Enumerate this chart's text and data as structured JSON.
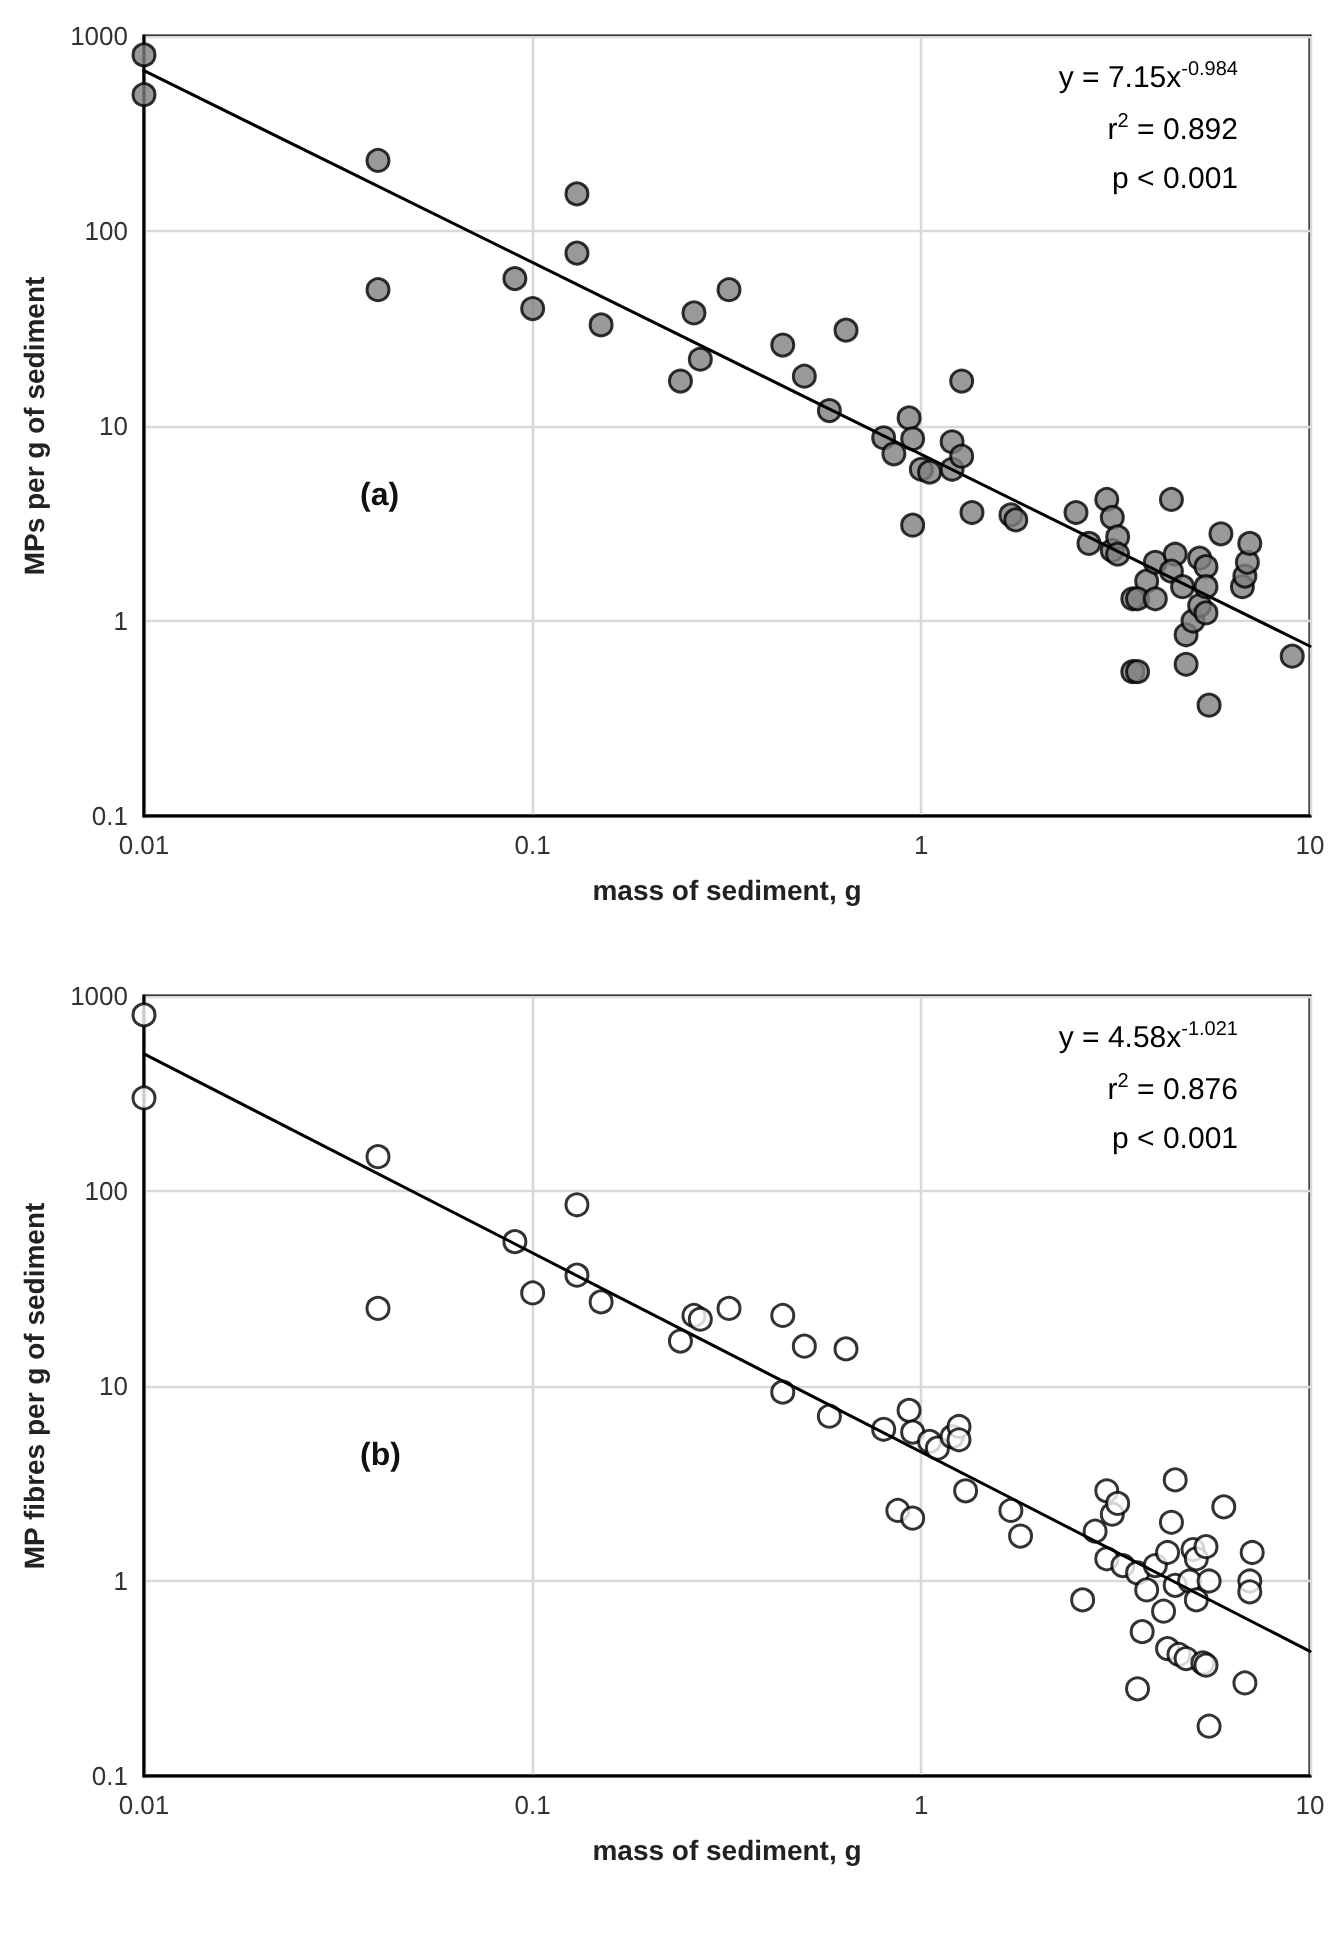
{
  "chart_data": [
    {
      "type": "scatter",
      "xlabel": "mass of sediment, g",
      "ylabel": "MPs per g of sediment",
      "log": "xy",
      "grid": true,
      "marker": "circle",
      "xlim": [
        0.01,
        10
      ],
      "ylim": [
        0.1,
        1000
      ],
      "xticks": [
        0.01,
        0.1,
        1,
        10
      ],
      "yticks": [
        0.1,
        1,
        10,
        100,
        1000
      ],
      "annotations": [
        "(a)",
        "y = 7.15x$^{-0.984}$",
        "r$^{2}$ = 0.892",
        "p < 0.001"
      ],
      "series": [
        {
          "color": "#808080",
          "x": [
            0.01,
            0.01,
            0.04,
            0.04,
            0.09,
            0.1,
            0.13,
            0.13,
            0.15,
            0.24,
            0.26,
            0.27,
            0.32,
            0.44,
            0.5,
            0.58,
            0.64,
            0.8,
            0.85,
            0.93,
            0.95,
            0.95,
            1.0,
            1.05,
            1.2,
            1.2,
            1.27,
            1.27,
            1.35,
            1.7,
            1.75,
            2.5,
            2.7,
            3.0,
            3.1,
            3.1,
            3.2,
            3.2,
            3.5,
            3.8,
            3.6,
            3.5,
            3.6,
            4.0,
            4.0,
            4.4,
            4.5,
            4.4,
            4.7,
            4.8,
            4.8,
            5.0,
            5.2,
            5.2,
            5.4,
            5.4,
            5.4,
            5.5,
            5.9,
            6.7,
            6.8,
            6.9,
            7.0,
            9.0
          ],
          "values": [
            800,
            500,
            230,
            50,
            57,
            40,
            155,
            77,
            33,
            17,
            38,
            22,
            50,
            26,
            18,
            12,
            31,
            8.7,
            7.2,
            11,
            8.6,
            3.1,
            6,
            5.8,
            8.3,
            6,
            7,
            17,
            3.6,
            3.5,
            3.3,
            3.6,
            2.5,
            4.2,
            2.3,
            3.4,
            2.7,
            2.2,
            1.3,
            1.6,
            1.3,
            0.55,
            0.55,
            2.0,
            1.3,
            4.2,
            2.2,
            1.8,
            1.5,
            0.85,
            0.6,
            1.0,
            2.1,
            1.2,
            1.9,
            1.5,
            1.1,
            0.37,
            2.8,
            1.5,
            1.7,
            2.0,
            2.5,
            0.66
          ]
        },
        {
          "type": "line",
          "color": "#000000",
          "marker": "none",
          "x": [
            0.01,
            10
          ],
          "values": [
            664,
            0.742
          ]
        }
      ]
    },
    {
      "type": "scatter",
      "xlabel": "mass of sediment, g",
      "ylabel": "MP fibres per g of sediment",
      "log": "xy",
      "grid": true,
      "marker": "circle",
      "xlim": [
        0.01,
        10
      ],
      "ylim": [
        0.1,
        1000
      ],
      "xticks": [
        0.01,
        0.1,
        1,
        10
      ],
      "yticks": [
        0.1,
        1,
        10,
        100,
        1000
      ],
      "annotations": [
        "(b)",
        "y = 4.58x$^{-1.021}$",
        "r$^{2}$ = 0.876",
        "p < 0.001"
      ],
      "series": [
        {
          "color": "#ffffff",
          "x": [
            0.01,
            0.01,
            0.04,
            0.04,
            0.09,
            0.1,
            0.13,
            0.13,
            0.15,
            0.24,
            0.26,
            0.27,
            0.32,
            0.44,
            0.44,
            0.5,
            0.58,
            0.64,
            0.8,
            0.87,
            0.93,
            0.95,
            0.95,
            1.05,
            1.1,
            1.2,
            1.25,
            1.25,
            1.3,
            1.7,
            1.8,
            2.6,
            2.8,
            3.0,
            3.0,
            3.1,
            3.2,
            3.3,
            3.6,
            3.6,
            3.7,
            3.8,
            4.0,
            4.2,
            4.3,
            4.3,
            4.4,
            4.5,
            4.5,
            4.6,
            4.8,
            4.9,
            5.0,
            5.1,
            5.1,
            5.3,
            5.4,
            5.4,
            5.5,
            5.5,
            6.0,
            6.8,
            7.0,
            7.0,
            7.1
          ],
          "values": [
            800,
            300,
            150,
            25,
            55,
            30,
            85,
            37,
            27,
            17,
            23,
            22,
            25,
            23,
            9.3,
            16,
            7,
            15.5,
            6,
            2.3,
            7.5,
            5.8,
            2.1,
            5.2,
            4.8,
            5.5,
            6.2,
            5.3,
            2.9,
            2.3,
            1.7,
            0.8,
            1.8,
            2.9,
            1.3,
            2.2,
            2.5,
            1.2,
            0.28,
            1.1,
            0.55,
            0.9,
            1.2,
            0.7,
            1.4,
            0.45,
            2.0,
            3.3,
            0.95,
            0.42,
            0.4,
            1.0,
            1.45,
            1.3,
            0.8,
            0.38,
            1.5,
            0.37,
            1.0,
            0.18,
            2.4,
            0.3,
            1.0,
            0.88,
            1.4
          ]
        },
        {
          "type": "line",
          "color": "#000000",
          "marker": "none",
          "x": [
            0.01,
            10
          ],
          "values": [
            505,
            0.436
          ]
        }
      ]
    }
  ]
}
